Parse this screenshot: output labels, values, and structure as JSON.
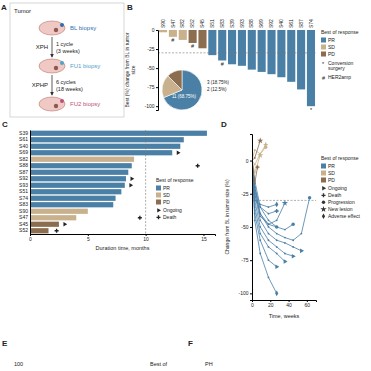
{
  "panel_letters": [
    "A",
    "B",
    "C",
    "D",
    "E",
    "F"
  ],
  "diagram": {
    "title": "Tumor",
    "biopsies": [
      "BL biopsy",
      "FU1 biopsy",
      "FU2 biopsy"
    ],
    "steps": [
      {
        "regimen": "XPH",
        "lines": [
          "1 cycle",
          "(3 weeks)"
        ]
      },
      {
        "regimen": "XPHP",
        "lines": [
          "6 cycles",
          "(18 weeks)"
        ]
      }
    ]
  },
  "chart_data": [
    {
      "type": "bar",
      "y_label": "Best (%) change from BL in tumor size",
      "categories": [
        "S90",
        "S47",
        "S82",
        "S52",
        "S45",
        "S51",
        "S83",
        "S39",
        "S93",
        "S88",
        "S69",
        "S92",
        "S40",
        "S61",
        "S87",
        "S74"
      ],
      "values": [
        -3,
        -9,
        -13,
        -17,
        -24,
        -33,
        -40,
        -45,
        -47,
        -52,
        -55,
        -58,
        -62,
        -68,
        -78,
        -100
      ],
      "colors": [
        "#c8b18c",
        "#c8b18c",
        "#c8b18c",
        "#8c6d4f",
        "#8c6d4f",
        "#4a7fa6",
        "#4a7fa6",
        "#4a7fa6",
        "#4a7fa6",
        "#4a7fa6",
        "#4a7fa6",
        "#4a7fa6",
        "#4a7fa6",
        "#4a7fa6",
        "#4a7fa6",
        "#4a7fa6"
      ],
      "symbols": [
        null,
        "#",
        null,
        "#",
        null,
        null,
        "#",
        null,
        null,
        null,
        null,
        null,
        null,
        null,
        null,
        "*"
      ],
      "ylim": [
        -105,
        0
      ],
      "yticks": [
        0,
        -25,
        -50,
        -75,
        -100
      ],
      "reference_line": -30,
      "legend_title": "Best of response",
      "legend_entries": [
        {
          "name": "PR",
          "color": "#4a7fa6"
        },
        {
          "name": "SD",
          "color": "#c8b18c"
        },
        {
          "name": "PD",
          "color": "#8c6d4f"
        }
      ],
      "symbol_legend": [
        {
          "symbol": "*",
          "label": "Conversion surgery"
        },
        {
          "symbol": "#",
          "label": "HER2amp"
        }
      ]
    },
    {
      "type": "pie",
      "categories": [
        "PR",
        "SD",
        "PD"
      ],
      "values": [
        11,
        3,
        2
      ],
      "value_labels": [
        "11 (68.75%)",
        "3 (18.75%)",
        "2 (12.5%)"
      ],
      "colors": [
        "#4a7fa6",
        "#c8b18c",
        "#8c6d4f"
      ]
    },
    {
      "type": "bar",
      "orientation": "horizontal",
      "x_label": "Duration time, months",
      "categories": [
        "S39",
        "S61",
        "S40",
        "S69",
        "S82",
        "S88",
        "S87",
        "S92",
        "S93",
        "S51",
        "S74",
        "S83",
        "S90",
        "S47",
        "S45",
        "S52"
      ],
      "values": [
        15.3,
        13.3,
        13.0,
        12.3,
        9.0,
        8.8,
        8.5,
        8.3,
        8.2,
        7.9,
        7.4,
        7.2,
        5.0,
        4.0,
        2.5,
        1.6
      ],
      "colors": [
        "#4a7fa6",
        "#4a7fa6",
        "#4a7fa6",
        "#4a7fa6",
        "#c8b18c",
        "#4a7fa6",
        "#4a7fa6",
        "#4a7fa6",
        "#4a7fa6",
        "#4a7fa6",
        "#4a7fa6",
        "#4a7fa6",
        "#c8b18c",
        "#c8b18c",
        "#8c6d4f",
        "#8c6d4f"
      ],
      "event_types": [
        null,
        null,
        null,
        "Ongoing",
        null,
        "Death",
        null,
        "Ongoing",
        "Ongoing",
        null,
        null,
        null,
        null,
        "Death",
        "Ongoing",
        "Death"
      ],
      "event_x": [
        null,
        null,
        null,
        12.8,
        null,
        14.5,
        null,
        8.8,
        8.7,
        null,
        null,
        null,
        null,
        9.5,
        3.0,
        2.3
      ],
      "xlim": [
        0,
        16
      ],
      "xticks": [
        0,
        5,
        10,
        15
      ],
      "reference_line": 10,
      "legend_title": "Best of response",
      "legend_entries": [
        {
          "name": "PR",
          "color": "#4a7fa6"
        },
        {
          "name": "SD",
          "color": "#c8b18c"
        },
        {
          "name": "PD",
          "color": "#8c6d4f"
        }
      ],
      "event_legend": [
        {
          "label": "Ongoing",
          "marker": "triangle"
        },
        {
          "label": "Death",
          "marker": "cross"
        }
      ]
    },
    {
      "type": "line",
      "x_label": "Time, weeks",
      "y_label": "Change from BL in tumor size (%)",
      "series": [
        {
          "color": "#4a7fa6",
          "x": [
            0,
            3,
            9,
            18,
            27,
            36,
            45,
            54,
            63
          ],
          "values": [
            0,
            -20,
            -40,
            -50,
            -55,
            -58,
            -60,
            -55,
            -28
          ],
          "end": "Progression"
        },
        {
          "color": "#4a7fa6",
          "x": [
            0,
            3,
            9,
            18,
            27,
            36,
            45,
            54
          ],
          "values": [
            0,
            -25,
            -45,
            -55,
            -60,
            -62,
            -65,
            -68
          ],
          "end": "Ongoing"
        },
        {
          "color": "#4a7fa6",
          "x": [
            0,
            3,
            9,
            18,
            27,
            36,
            45
          ],
          "values": [
            0,
            -15,
            -35,
            -45,
            -50,
            -52,
            -48
          ],
          "end": "Progression"
        },
        {
          "color": "#4a7fa6",
          "x": [
            0,
            3,
            9,
            18,
            27,
            36,
            45
          ],
          "values": [
            0,
            -30,
            -50,
            -60,
            -65,
            -70,
            -72
          ],
          "end": "Ongoing"
        },
        {
          "color": "#4a7fa6",
          "x": [
            0,
            3,
            9,
            18,
            27
          ],
          "values": [
            0,
            -20,
            -35,
            -40,
            -38
          ],
          "end": "Death"
        },
        {
          "color": "#4a7fa6",
          "x": [
            0,
            3,
            9,
            18,
            27,
            36
          ],
          "values": [
            0,
            -25,
            -40,
            -48,
            -45,
            -32
          ],
          "end": "New lesion"
        },
        {
          "color": "#4a7fa6",
          "x": [
            0,
            3,
            9,
            18,
            27
          ],
          "values": [
            0,
            -40,
            -60,
            -75,
            -80
          ],
          "end": "Ongoing"
        },
        {
          "color": "#4a7fa6",
          "x": [
            0,
            3,
            9,
            18,
            27,
            36
          ],
          "values": [
            0,
            -35,
            -55,
            -65,
            -70,
            -76
          ],
          "end": "Ongoing"
        },
        {
          "color": "#4a7fa6",
          "x": [
            0,
            3,
            9,
            18,
            27
          ],
          "values": [
            0,
            -30,
            -33,
            -35,
            -33
          ],
          "end": "Adverse effect"
        },
        {
          "color": "#4a7fa6",
          "x": [
            0,
            3,
            9,
            18,
            27
          ],
          "values": [
            0,
            -45,
            -70,
            -88,
            -100
          ],
          "end": "Adverse effect"
        },
        {
          "color": "#4a7fa6",
          "x": [
            0,
            3,
            9,
            18,
            27
          ],
          "values": [
            0,
            -20,
            -42,
            -48,
            -50
          ],
          "end": "Progression"
        },
        {
          "color": "#c8b18c",
          "x": [
            0,
            3,
            9,
            15
          ],
          "values": [
            0,
            8,
            5,
            10
          ],
          "end": "Progression"
        },
        {
          "color": "#c8b18c",
          "x": [
            0,
            3,
            9,
            15
          ],
          "values": [
            0,
            -3,
            5,
            12
          ],
          "end": "Death"
        },
        {
          "color": "#c8b18c",
          "x": [
            0,
            3,
            9
          ],
          "values": [
            0,
            -9,
            4
          ],
          "end": "New lesion"
        },
        {
          "color": "#8c6d4f",
          "x": [
            0,
            3,
            9
          ],
          "values": [
            0,
            2,
            15
          ],
          "end": "New lesion"
        },
        {
          "color": "#8c6d4f",
          "x": [
            0,
            3,
            6
          ],
          "values": [
            0,
            -17,
            -5
          ],
          "end": "Death"
        }
      ],
      "xlim": [
        0,
        70
      ],
      "xticks": [
        0,
        20,
        40,
        60
      ],
      "ylim": [
        -105,
        20
      ],
      "yticks": [
        0,
        -25,
        -50,
        -75,
        -100
      ],
      "reference_line": -30,
      "legend_title": "Best of response",
      "legend_entries": [
        {
          "name": "PR",
          "color": "#4a7fa6"
        },
        {
          "name": "SD",
          "color": "#c8b18c"
        },
        {
          "name": "PD",
          "color": "#8c6d4f"
        }
      ],
      "event_legend": [
        {
          "label": "Ongoing",
          "marker": "triangle"
        },
        {
          "label": "Death",
          "marker": "cross"
        },
        {
          "label": "Progression",
          "marker": "circle"
        },
        {
          "label": "New lesion",
          "marker": "star"
        },
        {
          "label": "Adverse effect",
          "marker": "diamond"
        }
      ]
    }
  ],
  "cropped": {
    "E": {
      "tick": "100",
      "text": "Best of"
    },
    "F": {
      "text": "PH"
    }
  }
}
